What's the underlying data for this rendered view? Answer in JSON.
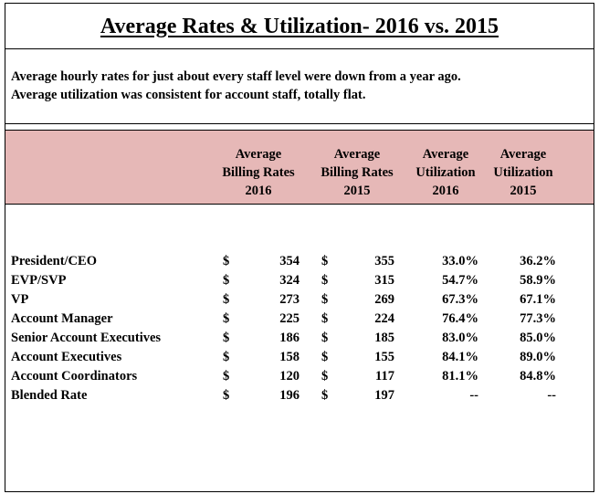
{
  "title": "Average Rates & Utilization- 2016 vs. 2015",
  "subtitle": {
    "line1": "Average hourly rates for just about every staff level were down from a year ago.",
    "line2": "Average utilization was consistent for account staff, totally flat."
  },
  "header_color": "#e6b8b7",
  "columns": [
    {
      "line1": "Average",
      "line2": "Billing Rates",
      "line3": "2016"
    },
    {
      "line1": "Average",
      "line2": "Billing Rates",
      "line3": "2015"
    },
    {
      "line1": "Average",
      "line2": "Utilization",
      "line3": "2016"
    },
    {
      "line1": "Average",
      "line2": "Utilization",
      "line3": "2015"
    }
  ],
  "rows": [
    {
      "label": "President/CEO",
      "d1": "$",
      "r2016": "354",
      "d2": "$",
      "r2015": "355",
      "u2016": "33.0%",
      "u2015": "36.2%"
    },
    {
      "label": "EVP/SVP",
      "d1": "$",
      "r2016": "324",
      "d2": "$",
      "r2015": "315",
      "u2016": "54.7%",
      "u2015": "58.9%"
    },
    {
      "label": "VP",
      "d1": "$",
      "r2016": "273",
      "d2": "$",
      "r2015": "269",
      "u2016": "67.3%",
      "u2015": "67.1%"
    },
    {
      "label": "Account Manager",
      "d1": "$",
      "r2016": "225",
      "d2": "$",
      "r2015": "224",
      "u2016": "76.4%",
      "u2015": "77.3%"
    },
    {
      "label": "Senior Account Executives",
      "d1": "$",
      "r2016": "186",
      "d2": "$",
      "r2015": "185",
      "u2016": "83.0%",
      "u2015": "85.0%"
    },
    {
      "label": "Account Executives",
      "d1": "$",
      "r2016": "158",
      "d2": "$",
      "r2015": "155",
      "u2016": "84.1%",
      "u2015": "89.0%"
    },
    {
      "label": "Account Coordinators",
      "d1": "$",
      "r2016": "120",
      "d2": "$",
      "r2015": "117",
      "u2016": "81.1%",
      "u2015": "84.8%"
    },
    {
      "label": "Blended Rate",
      "d1": "$",
      "r2016": "196",
      "d2": "$",
      "r2015": "197",
      "u2016": "--",
      "u2015": "--"
    }
  ]
}
